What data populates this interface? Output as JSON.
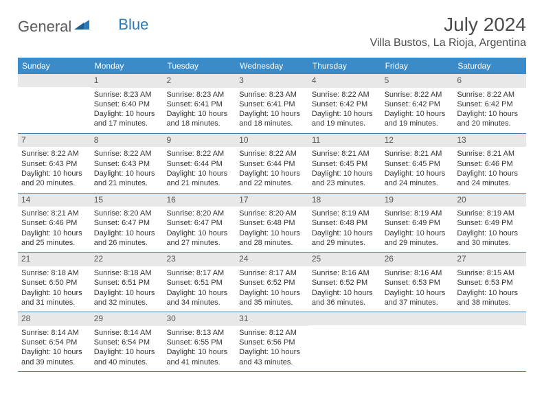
{
  "logo": {
    "text1": "General",
    "text2": "Blue"
  },
  "header": {
    "month_title": "July 2024",
    "location": "Villa Bustos, La Rioja, Argentina"
  },
  "colors": {
    "header_bg": "#3b8bc8",
    "header_text": "#ffffff",
    "daynum_bg": "#e8e8e8",
    "daynum_text": "#555555",
    "body_text": "#333333",
    "week_border": "#4a7ba8",
    "logo_gray": "#5a5a5a",
    "logo_blue": "#2a7ab8"
  },
  "day_names": [
    "Sunday",
    "Monday",
    "Tuesday",
    "Wednesday",
    "Thursday",
    "Friday",
    "Saturday"
  ],
  "weeks": [
    [
      {
        "n": "",
        "sr": "",
        "ss": "",
        "d1": "",
        "d2": ""
      },
      {
        "n": "1",
        "sr": "Sunrise: 8:23 AM",
        "ss": "Sunset: 6:40 PM",
        "d1": "Daylight: 10 hours",
        "d2": "and 17 minutes."
      },
      {
        "n": "2",
        "sr": "Sunrise: 8:23 AM",
        "ss": "Sunset: 6:41 PM",
        "d1": "Daylight: 10 hours",
        "d2": "and 18 minutes."
      },
      {
        "n": "3",
        "sr": "Sunrise: 8:23 AM",
        "ss": "Sunset: 6:41 PM",
        "d1": "Daylight: 10 hours",
        "d2": "and 18 minutes."
      },
      {
        "n": "4",
        "sr": "Sunrise: 8:22 AM",
        "ss": "Sunset: 6:42 PM",
        "d1": "Daylight: 10 hours",
        "d2": "and 19 minutes."
      },
      {
        "n": "5",
        "sr": "Sunrise: 8:22 AM",
        "ss": "Sunset: 6:42 PM",
        "d1": "Daylight: 10 hours",
        "d2": "and 19 minutes."
      },
      {
        "n": "6",
        "sr": "Sunrise: 8:22 AM",
        "ss": "Sunset: 6:42 PM",
        "d1": "Daylight: 10 hours",
        "d2": "and 20 minutes."
      }
    ],
    [
      {
        "n": "7",
        "sr": "Sunrise: 8:22 AM",
        "ss": "Sunset: 6:43 PM",
        "d1": "Daylight: 10 hours",
        "d2": "and 20 minutes."
      },
      {
        "n": "8",
        "sr": "Sunrise: 8:22 AM",
        "ss": "Sunset: 6:43 PM",
        "d1": "Daylight: 10 hours",
        "d2": "and 21 minutes."
      },
      {
        "n": "9",
        "sr": "Sunrise: 8:22 AM",
        "ss": "Sunset: 6:44 PM",
        "d1": "Daylight: 10 hours",
        "d2": "and 21 minutes."
      },
      {
        "n": "10",
        "sr": "Sunrise: 8:22 AM",
        "ss": "Sunset: 6:44 PM",
        "d1": "Daylight: 10 hours",
        "d2": "and 22 minutes."
      },
      {
        "n": "11",
        "sr": "Sunrise: 8:21 AM",
        "ss": "Sunset: 6:45 PM",
        "d1": "Daylight: 10 hours",
        "d2": "and 23 minutes."
      },
      {
        "n": "12",
        "sr": "Sunrise: 8:21 AM",
        "ss": "Sunset: 6:45 PM",
        "d1": "Daylight: 10 hours",
        "d2": "and 24 minutes."
      },
      {
        "n": "13",
        "sr": "Sunrise: 8:21 AM",
        "ss": "Sunset: 6:46 PM",
        "d1": "Daylight: 10 hours",
        "d2": "and 24 minutes."
      }
    ],
    [
      {
        "n": "14",
        "sr": "Sunrise: 8:21 AM",
        "ss": "Sunset: 6:46 PM",
        "d1": "Daylight: 10 hours",
        "d2": "and 25 minutes."
      },
      {
        "n": "15",
        "sr": "Sunrise: 8:20 AM",
        "ss": "Sunset: 6:47 PM",
        "d1": "Daylight: 10 hours",
        "d2": "and 26 minutes."
      },
      {
        "n": "16",
        "sr": "Sunrise: 8:20 AM",
        "ss": "Sunset: 6:47 PM",
        "d1": "Daylight: 10 hours",
        "d2": "and 27 minutes."
      },
      {
        "n": "17",
        "sr": "Sunrise: 8:20 AM",
        "ss": "Sunset: 6:48 PM",
        "d1": "Daylight: 10 hours",
        "d2": "and 28 minutes."
      },
      {
        "n": "18",
        "sr": "Sunrise: 8:19 AM",
        "ss": "Sunset: 6:48 PM",
        "d1": "Daylight: 10 hours",
        "d2": "and 29 minutes."
      },
      {
        "n": "19",
        "sr": "Sunrise: 8:19 AM",
        "ss": "Sunset: 6:49 PM",
        "d1": "Daylight: 10 hours",
        "d2": "and 29 minutes."
      },
      {
        "n": "20",
        "sr": "Sunrise: 8:19 AM",
        "ss": "Sunset: 6:49 PM",
        "d1": "Daylight: 10 hours",
        "d2": "and 30 minutes."
      }
    ],
    [
      {
        "n": "21",
        "sr": "Sunrise: 8:18 AM",
        "ss": "Sunset: 6:50 PM",
        "d1": "Daylight: 10 hours",
        "d2": "and 31 minutes."
      },
      {
        "n": "22",
        "sr": "Sunrise: 8:18 AM",
        "ss": "Sunset: 6:51 PM",
        "d1": "Daylight: 10 hours",
        "d2": "and 32 minutes."
      },
      {
        "n": "23",
        "sr": "Sunrise: 8:17 AM",
        "ss": "Sunset: 6:51 PM",
        "d1": "Daylight: 10 hours",
        "d2": "and 34 minutes."
      },
      {
        "n": "24",
        "sr": "Sunrise: 8:17 AM",
        "ss": "Sunset: 6:52 PM",
        "d1": "Daylight: 10 hours",
        "d2": "and 35 minutes."
      },
      {
        "n": "25",
        "sr": "Sunrise: 8:16 AM",
        "ss": "Sunset: 6:52 PM",
        "d1": "Daylight: 10 hours",
        "d2": "and 36 minutes."
      },
      {
        "n": "26",
        "sr": "Sunrise: 8:16 AM",
        "ss": "Sunset: 6:53 PM",
        "d1": "Daylight: 10 hours",
        "d2": "and 37 minutes."
      },
      {
        "n": "27",
        "sr": "Sunrise: 8:15 AM",
        "ss": "Sunset: 6:53 PM",
        "d1": "Daylight: 10 hours",
        "d2": "and 38 minutes."
      }
    ],
    [
      {
        "n": "28",
        "sr": "Sunrise: 8:14 AM",
        "ss": "Sunset: 6:54 PM",
        "d1": "Daylight: 10 hours",
        "d2": "and 39 minutes."
      },
      {
        "n": "29",
        "sr": "Sunrise: 8:14 AM",
        "ss": "Sunset: 6:54 PM",
        "d1": "Daylight: 10 hours",
        "d2": "and 40 minutes."
      },
      {
        "n": "30",
        "sr": "Sunrise: 8:13 AM",
        "ss": "Sunset: 6:55 PM",
        "d1": "Daylight: 10 hours",
        "d2": "and 41 minutes."
      },
      {
        "n": "31",
        "sr": "Sunrise: 8:12 AM",
        "ss": "Sunset: 6:56 PM",
        "d1": "Daylight: 10 hours",
        "d2": "and 43 minutes."
      },
      {
        "n": "",
        "sr": "",
        "ss": "",
        "d1": "",
        "d2": ""
      },
      {
        "n": "",
        "sr": "",
        "ss": "",
        "d1": "",
        "d2": ""
      },
      {
        "n": "",
        "sr": "",
        "ss": "",
        "d1": "",
        "d2": ""
      }
    ]
  ]
}
